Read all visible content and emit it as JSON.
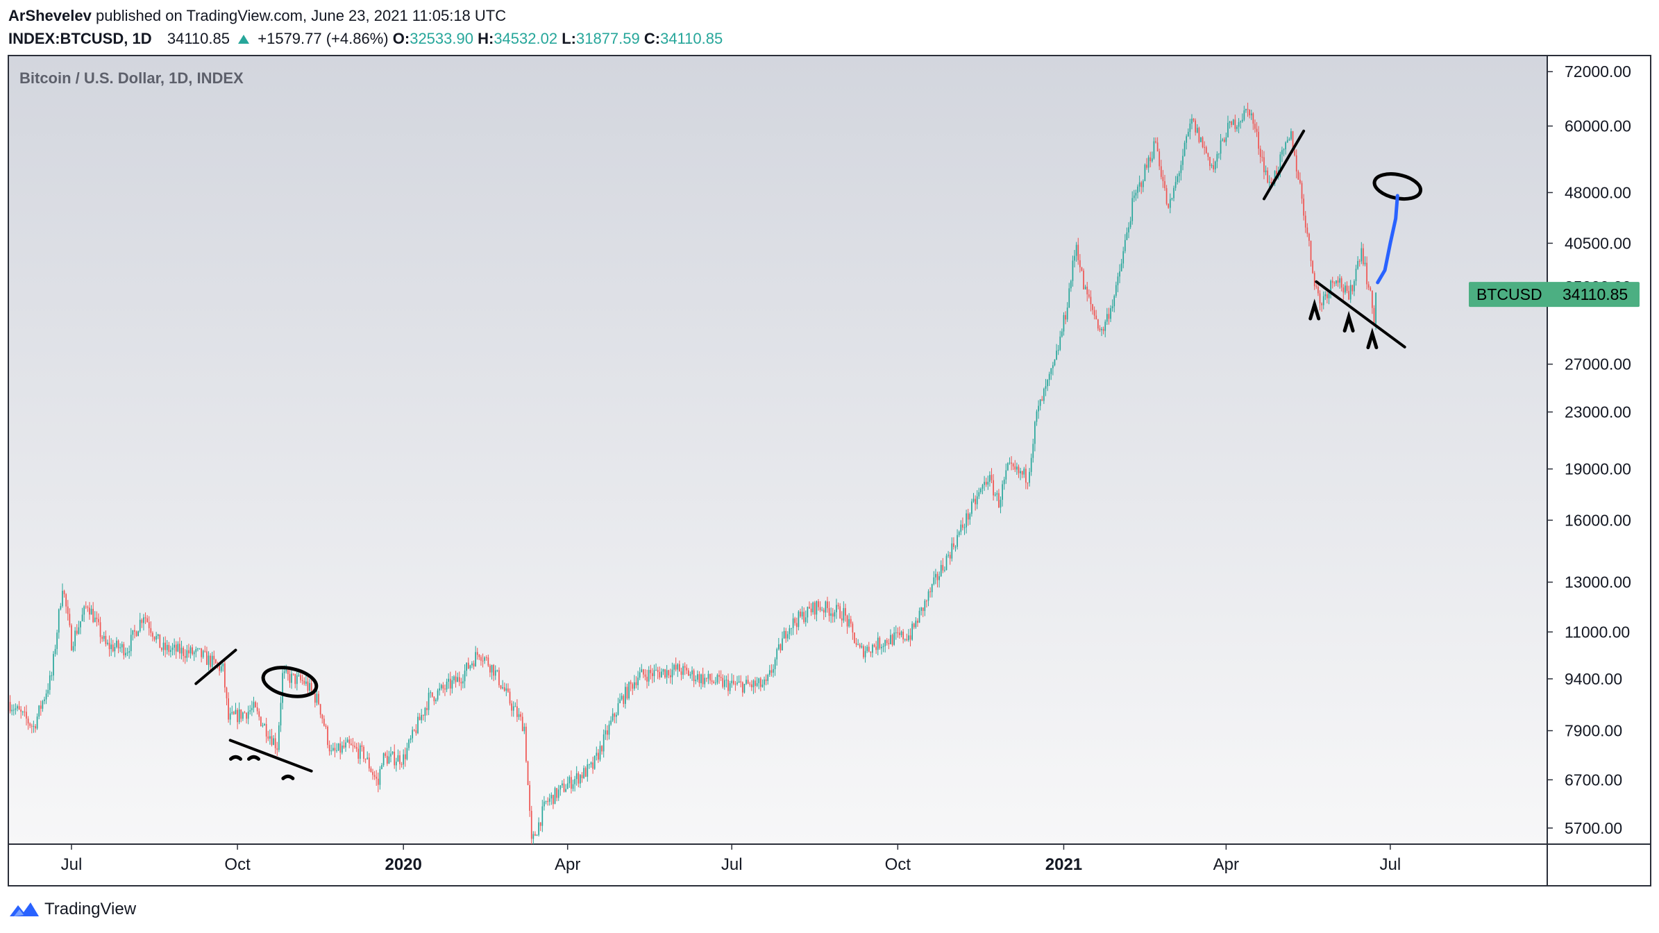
{
  "header": {
    "author": "ArShevelev",
    "published": "published on TradingView.com, June 23, 2021 11:05:18 UTC",
    "symbol": "INDEX:BTCUSD",
    "interval": "1D",
    "last": "34110.85",
    "change": "+1579.77 (+4.86%)",
    "o_label": "O:",
    "o": "32533.90",
    "h_label": "H:",
    "h": "34532.02",
    "l_label": "L:",
    "l": "31877.59",
    "c_label": "C:",
    "c": "34110.85"
  },
  "legend": {
    "title": "Bitcoin / U.S. Dollar, 1D, INDEX"
  },
  "price_tag": {
    "label": "BTCUSD",
    "value": "34110.85"
  },
  "footer": {
    "brand": "TradingView"
  },
  "colors": {
    "up": "#26a69a",
    "down": "#ef5350",
    "tag": "#4caf82",
    "pane_top": "#d3d6de",
    "pane_bottom": "#f7f7f8",
    "drawing": "#000000",
    "drawing_blue": "#2962ff"
  },
  "chart_data": {
    "type": "candlestick",
    "title": "Bitcoin / U.S. Dollar, 1D, INDEX",
    "yscale": "log",
    "ylim": [
      5400,
      76000
    ],
    "xlim": [
      "2019-05-27",
      "2021-09-26"
    ],
    "y_ticks": [
      "72000.00",
      "60000.00",
      "48000.00",
      "40500.00",
      "35000.00",
      "27000.00",
      "23000.00",
      "19000.00",
      "16000.00",
      "13000.00",
      "11000.00",
      "9400.00",
      "7900.00",
      "6700.00",
      "5700.00"
    ],
    "x_ticks": [
      {
        "date": "2019-07-01",
        "label": "Jul",
        "bold": false
      },
      {
        "date": "2019-10-01",
        "label": "Oct",
        "bold": false
      },
      {
        "date": "2020-01-01",
        "label": "2020",
        "bold": true
      },
      {
        "date": "2020-04-01",
        "label": "Apr",
        "bold": false
      },
      {
        "date": "2020-07-01",
        "label": "Jul",
        "bold": false
      },
      {
        "date": "2020-10-01",
        "label": "Oct",
        "bold": false
      },
      {
        "date": "2021-01-01",
        "label": "2021",
        "bold": true
      },
      {
        "date": "2021-04-01",
        "label": "Apr",
        "bold": false
      },
      {
        "date": "2021-07-01",
        "label": "Jul",
        "bold": false
      }
    ],
    "close_series": [
      [
        "2019-05-27",
        8700
      ],
      [
        "2019-06-10",
        8000
      ],
      [
        "2019-06-20",
        9500
      ],
      [
        "2019-06-26",
        12900
      ],
      [
        "2019-07-01",
        10600
      ],
      [
        "2019-07-10",
        12100
      ],
      [
        "2019-07-20",
        10500
      ],
      [
        "2019-08-01",
        10400
      ],
      [
        "2019-08-10",
        11700
      ],
      [
        "2019-08-20",
        10400
      ],
      [
        "2019-09-01",
        10300
      ],
      [
        "2019-09-10",
        10200
      ],
      [
        "2019-09-23",
        9700
      ],
      [
        "2019-09-26",
        8200
      ],
      [
        "2019-10-10",
        8500
      ],
      [
        "2019-10-23",
        7500
      ],
      [
        "2019-10-26",
        9500
      ],
      [
        "2019-11-07",
        9300
      ],
      [
        "2019-11-15",
        8700
      ],
      [
        "2019-11-22",
        7300
      ],
      [
        "2019-12-01",
        7500
      ],
      [
        "2019-12-10",
        7300
      ],
      [
        "2019-12-18",
        6600
      ],
      [
        "2019-12-20",
        7200
      ],
      [
        "2020-01-01",
        7200
      ],
      [
        "2020-01-15",
        8800
      ],
      [
        "2020-02-01",
        9400
      ],
      [
        "2020-02-12",
        10300
      ],
      [
        "2020-02-20",
        9700
      ],
      [
        "2020-03-01",
        8600
      ],
      [
        "2020-03-08",
        8000
      ],
      [
        "2020-03-12",
        5400
      ],
      [
        "2020-03-20",
        6200
      ],
      [
        "2020-04-01",
        6600
      ],
      [
        "2020-04-15",
        7000
      ],
      [
        "2020-04-30",
        8700
      ],
      [
        "2020-05-10",
        9500
      ],
      [
        "2020-06-01",
        9700
      ],
      [
        "2020-06-15",
        9400
      ],
      [
        "2020-07-01",
        9200
      ],
      [
        "2020-07-20",
        9200
      ],
      [
        "2020-08-01",
        11200
      ],
      [
        "2020-08-17",
        12000
      ],
      [
        "2020-09-01",
        11700
      ],
      [
        "2020-09-10",
        10300
      ],
      [
        "2020-09-25",
        10700
      ],
      [
        "2020-10-08",
        10900
      ],
      [
        "2020-10-21",
        12900
      ],
      [
        "2020-11-05",
        15500
      ],
      [
        "2020-11-20",
        18500
      ],
      [
        "2020-11-26",
        17000
      ],
      [
        "2020-12-01",
        19000
      ],
      [
        "2020-12-12",
        18500
      ],
      [
        "2020-12-17",
        22800
      ],
      [
        "2020-12-27",
        27000
      ],
      [
        "2021-01-02",
        32000
      ],
      [
        "2021-01-08",
        40500
      ],
      [
        "2021-01-12",
        35000
      ],
      [
        "2021-01-22",
        30000
      ],
      [
        "2021-01-30",
        34500
      ],
      [
        "2021-02-08",
        46000
      ],
      [
        "2021-02-21",
        57000
      ],
      [
        "2021-02-28",
        45000
      ],
      [
        "2021-03-13",
        61000
      ],
      [
        "2021-03-25",
        52000
      ],
      [
        "2021-04-01",
        59000
      ],
      [
        "2021-04-14",
        63500
      ],
      [
        "2021-04-25",
        49000
      ],
      [
        "2021-05-07",
        58000
      ],
      [
        "2021-05-12",
        49000
      ],
      [
        "2021-05-19",
        37000
      ],
      [
        "2021-05-23",
        33000
      ],
      [
        "2021-06-01",
        36500
      ],
      [
        "2021-06-08",
        33500
      ],
      [
        "2021-06-15",
        40000
      ],
      [
        "2021-06-22",
        31500
      ],
      [
        "2021-06-23",
        34110.85
      ]
    ]
  },
  "drawings": [
    {
      "kind": "line",
      "from": [
        "2019-09-08",
        9250
      ],
      "to": [
        "2019-09-30",
        10350
      ]
    },
    {
      "kind": "line",
      "from": [
        "2019-09-27",
        7650
      ],
      "to": [
        "2019-11-11",
        6900
      ]
    },
    {
      "kind": "ellipse",
      "center": [
        "2019-10-30",
        9300
      ],
      "rx_days": 15,
      "label": "circle-1"
    },
    {
      "kind": "line",
      "from": [
        "2021-04-22",
        47000
      ],
      "to": [
        "2021-05-14",
        59000
      ]
    },
    {
      "kind": "line",
      "from": [
        "2021-05-21",
        35600
      ],
      "to": [
        "2021-07-09",
        28600
      ]
    },
    {
      "kind": "ellipse",
      "center": [
        "2021-07-05",
        49000
      ],
      "rx_days": 13,
      "label": "circle-2"
    }
  ]
}
